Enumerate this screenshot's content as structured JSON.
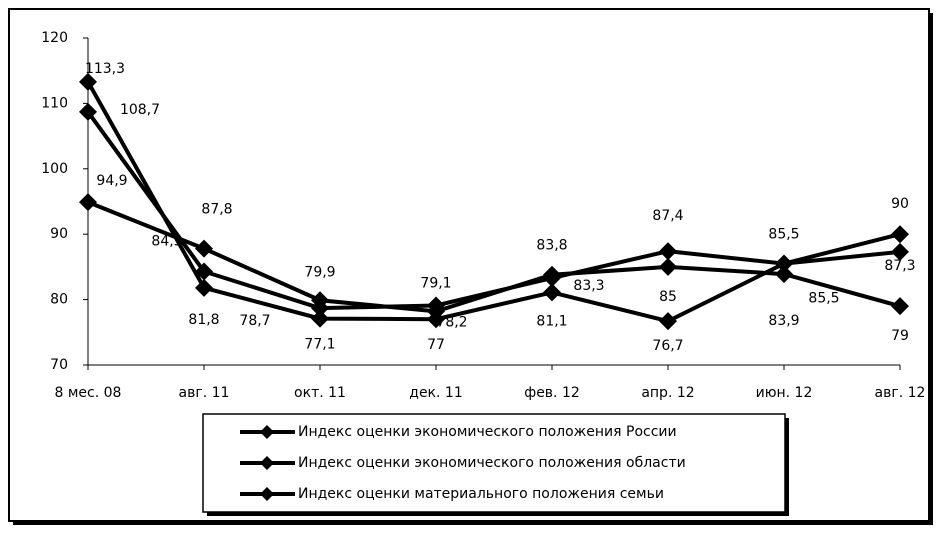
{
  "chart_data": {
    "type": "line",
    "categories": [
      "8 мес. 08",
      "авг. 11",
      "окт. 11",
      "дек. 11",
      "фев. 12",
      "апр. 12",
      "июн. 12",
      "авг. 12"
    ],
    "ylim": [
      70,
      120
    ],
    "yticks": [
      70,
      80,
      90,
      100,
      110,
      120
    ],
    "series": [
      {
        "name": "Индекс оценки экономического положения  России",
        "color": "#000000",
        "values": [
          113.3,
          81.8,
          77.1,
          77,
          81.1,
          76.7,
          85.5,
          90
        ],
        "value_labels": [
          "113,3",
          "81,8",
          "77,1",
          "77",
          "81,1",
          "76,7",
          "85,5",
          "90"
        ]
      },
      {
        "name": "Индекс оценки экономического положения области",
        "color": "#000000",
        "values": [
          94.9,
          87.8,
          79.9,
          78.2,
          83.8,
          85,
          83.9,
          79
        ],
        "value_labels": [
          "94,9",
          "87,8",
          "79,9",
          "78,2",
          "83,8",
          "85",
          "83,9",
          "79"
        ]
      },
      {
        "name": "Индекс оценки материального положения семьи",
        "color": "#000000",
        "values": [
          108.7,
          84.3,
          78.7,
          79.1,
          83.3,
          87.4,
          85.5,
          87.3
        ],
        "value_labels": [
          "108,7",
          "84,3",
          "78,7",
          "79,1",
          "83,3",
          "87,4",
          "85,5",
          "87,3"
        ]
      }
    ]
  }
}
